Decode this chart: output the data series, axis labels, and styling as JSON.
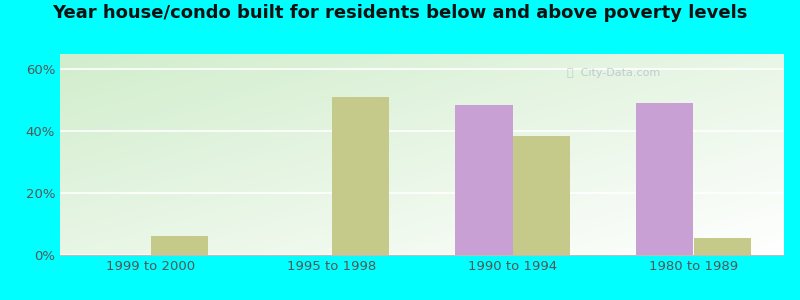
{
  "categories": [
    "1999 to 2000",
    "1995 to 1998",
    "1990 to 1994",
    "1980 to 1989"
  ],
  "below_poverty": [
    0.0,
    0.0,
    48.5,
    49.0
  ],
  "above_poverty": [
    6.0,
    51.0,
    38.5,
    5.5
  ],
  "below_color": "#c8a0d4",
  "above_color": "#c5c98a",
  "title": "Year house/condo built for residents below and above poverty levels",
  "ylabel_ticks": [
    "0%",
    "20%",
    "40%",
    "60%"
  ],
  "ytick_vals": [
    0,
    20,
    40,
    60
  ],
  "ylim": [
    0,
    65
  ],
  "background_outer": "#00ffff",
  "bar_width": 0.32,
  "title_fontsize": 13,
  "tick_fontsize": 9.5,
  "legend_fontsize": 9.5,
  "plot_bg_colors": [
    "#d8efd0",
    "#f5fff8"
  ],
  "grid_color": "#ffffff",
  "text_color": "#555555"
}
